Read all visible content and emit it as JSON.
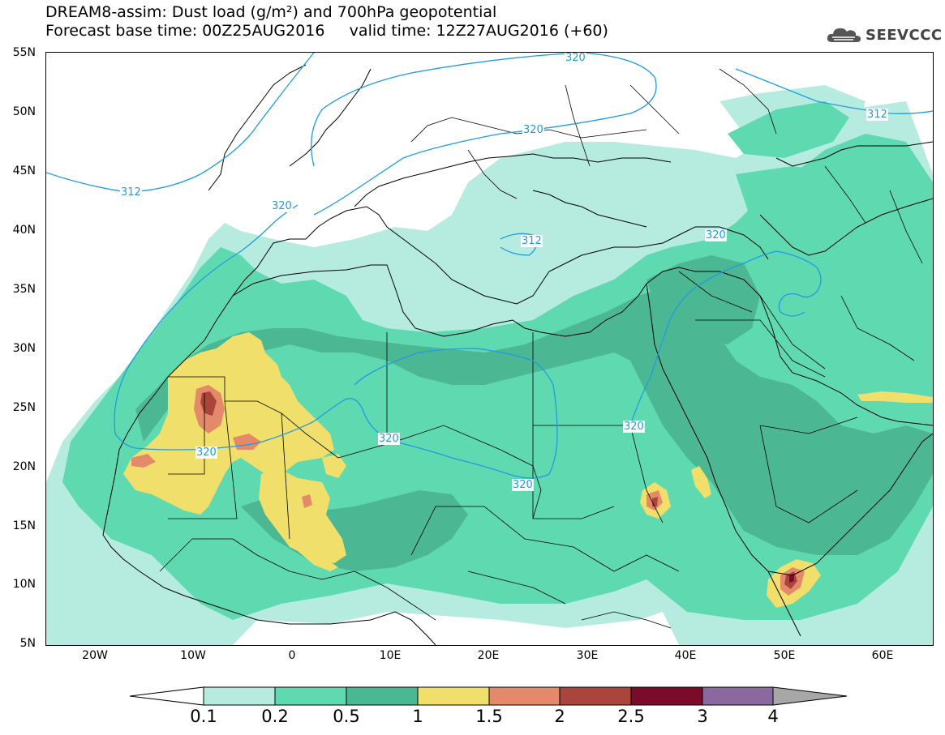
{
  "header": {
    "title_line1": "DREAM8-assim: Dust load (g/m²) and 700hPa geopotential",
    "title_line2": "Forecast base time: 00Z25AUG2016     valid time: 12Z27AUG2016 (+60)"
  },
  "logo": {
    "text": "SEEVCCC",
    "icon": "cloud-logo-icon"
  },
  "map": {
    "lat_labels": [
      "55N",
      "50N",
      "45N",
      "40N",
      "35N",
      "30N",
      "25N",
      "20N",
      "15N",
      "10N",
      "5N"
    ],
    "lon_labels": [
      "20W",
      "10W",
      "0",
      "10E",
      "20E",
      "30E",
      "40E",
      "50E",
      "60E"
    ],
    "contour_labels": [
      "312",
      "312",
      "320",
      "320",
      "320",
      "320",
      "320",
      "320",
      "320",
      "320",
      "312"
    ]
  },
  "colorbar": {
    "labels": [
      "0.1",
      "0.2",
      "0.5",
      "1",
      "1.5",
      "2",
      "2.5",
      "3",
      "4"
    ],
    "colors": [
      "#ffffff",
      "#b6ecdf",
      "#5fd9b0",
      "#4cb893",
      "#f1df6c",
      "#e4896a",
      "#a9453b",
      "#7a0c2a",
      "#8a6a9e",
      "#a7a7a7"
    ]
  }
}
